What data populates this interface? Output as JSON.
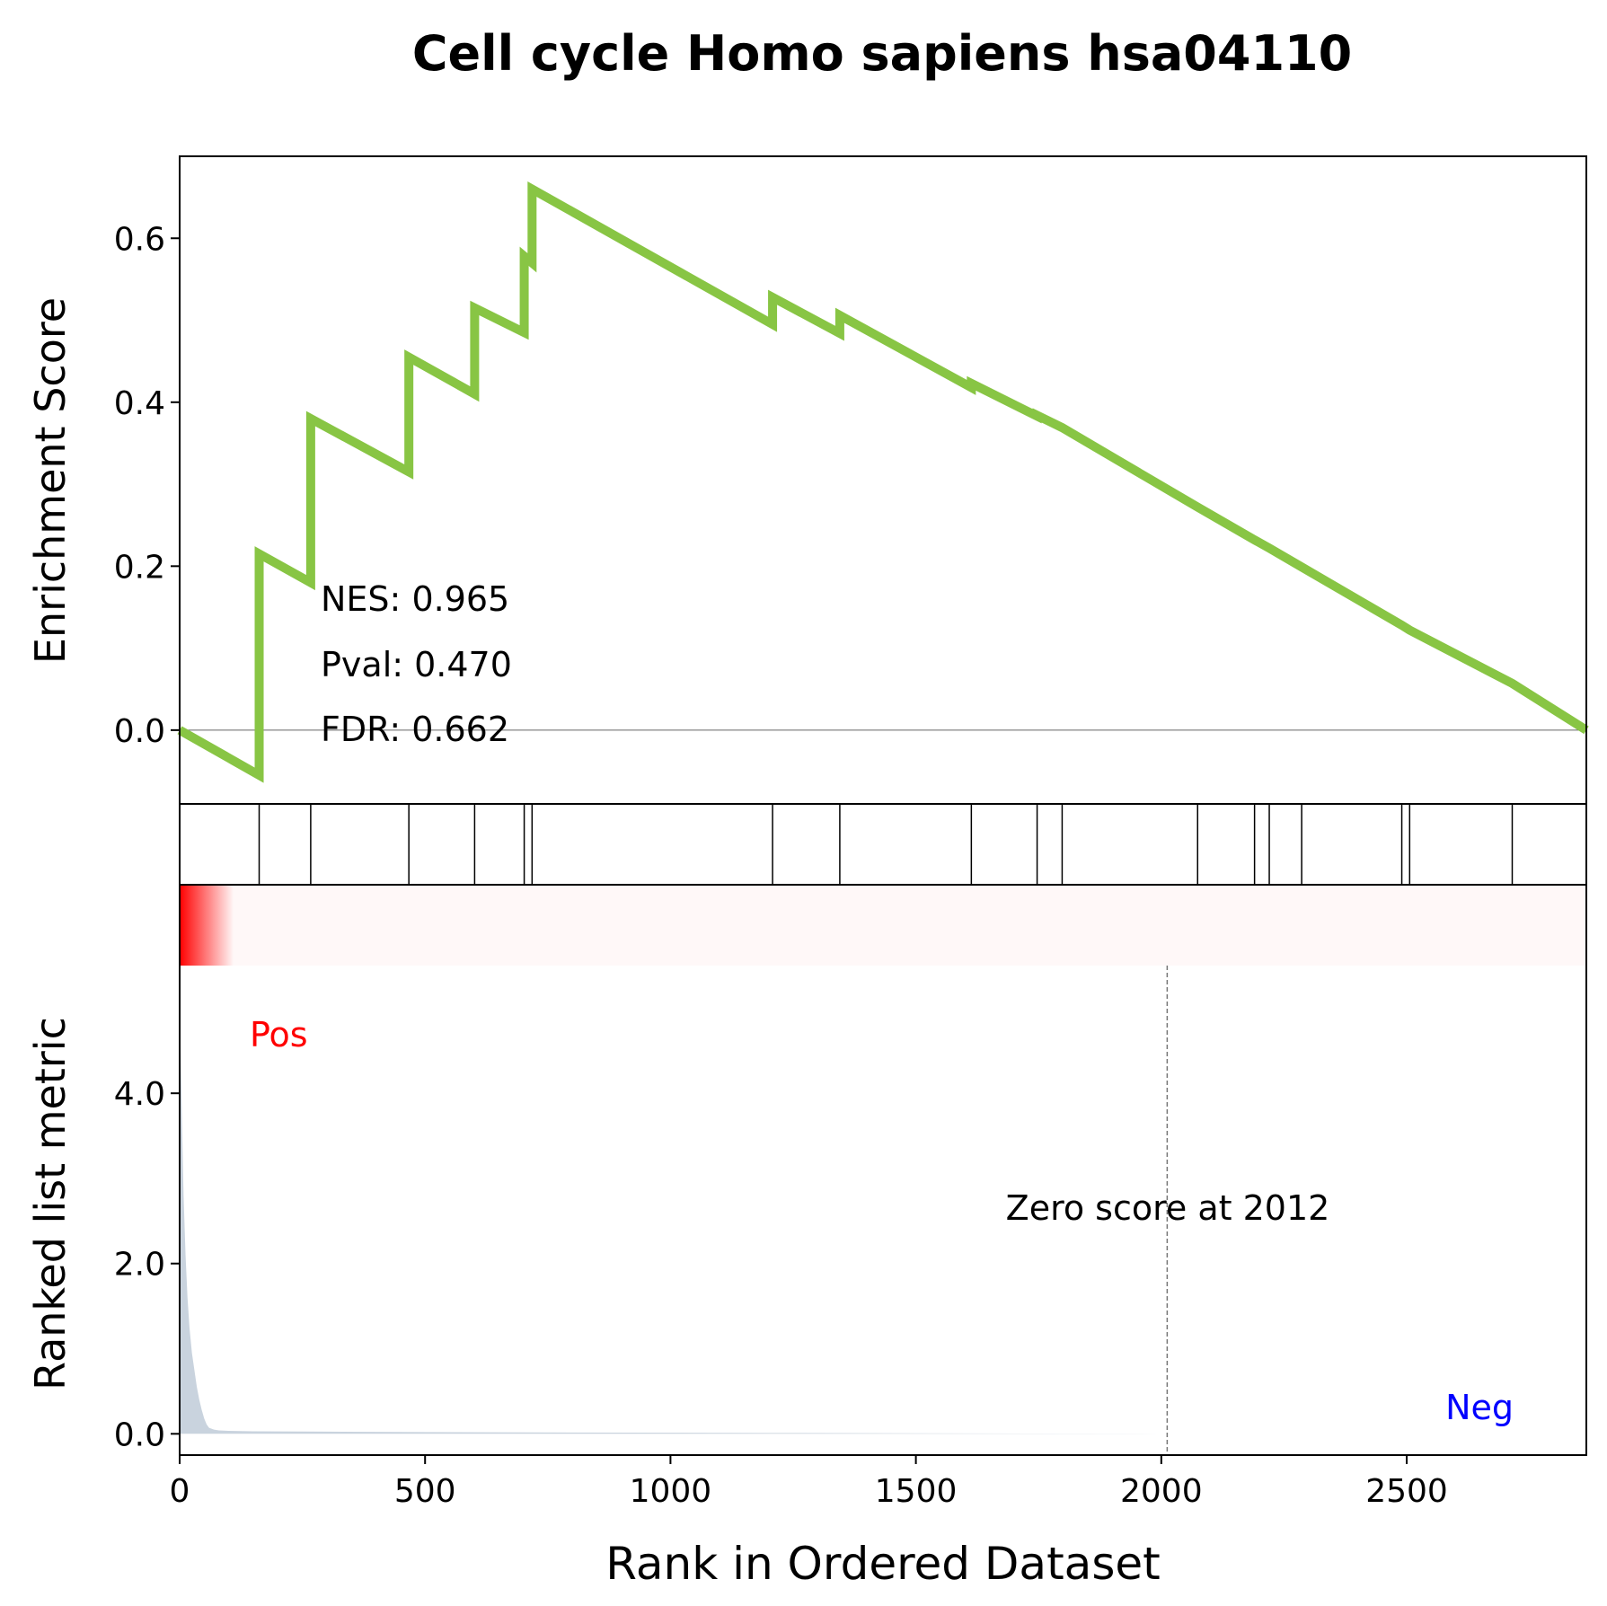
{
  "figure": {
    "title": "Cell cycle Homo sapiens hsa04110"
  },
  "chart_data": [
    {
      "type": "line",
      "panel": "enrichment",
      "ylabel": "Enrichment Score",
      "xlim": [
        0,
        2866
      ],
      "ylim": [
        -0.09,
        0.7
      ],
      "yticks": [
        0.0,
        0.2,
        0.4,
        0.6
      ],
      "ytick_labels": [
        "0.0",
        "0.2",
        "0.4",
        "0.6"
      ],
      "zero_line": true,
      "line_color": "#88C544",
      "series": [
        {
          "x": [
            0,
            162,
            162,
            267,
            267,
            467,
            467,
            601,
            601,
            702,
            702,
            718,
            718,
            1208,
            1208,
            1345,
            1345,
            1613,
            1613,
            1747,
            1747,
            1798,
            1798,
            2074,
            2190,
            2220,
            2286,
            2490,
            2506,
            2715,
            2866
          ],
          "y": [
            0.0,
            -0.055,
            0.215,
            0.18,
            0.38,
            0.315,
            0.455,
            0.41,
            0.515,
            0.485,
            0.578,
            0.57,
            0.66,
            0.495,
            0.528,
            0.484,
            0.506,
            0.418,
            0.423,
            0.383,
            0.384,
            0.369,
            0.369,
            0.272,
            0.232,
            0.222,
            0.199,
            0.128,
            0.122,
            0.057,
            0.0
          ]
        }
      ],
      "annotations": [
        {
          "label": "NES",
          "text": "NES: 0.965"
        },
        {
          "label": "Pval",
          "text": "Pval: 0.470"
        },
        {
          "label": "FDR",
          "text": "FDR: 0.662"
        }
      ]
    },
    {
      "type": "scatter",
      "panel": "hits",
      "description": "gene set hit positions",
      "x": [
        162,
        267,
        467,
        601,
        702,
        718,
        1208,
        1345,
        1613,
        1747,
        1798,
        2074,
        2190,
        2220,
        2286,
        2490,
        2506,
        2715,
        2866
      ]
    },
    {
      "type": "heatmap",
      "panel": "rank-colorbar",
      "color_high": "#ff0000",
      "color_low": "#fff8f8",
      "gradient_end_rank": 110
    },
    {
      "type": "area",
      "panel": "ranked-metric",
      "xlabel": "Rank in Ordered Dataset",
      "ylabel": "Ranked list metric",
      "xlim": [
        0,
        2866
      ],
      "ylim": [
        -0.25,
        5.5
      ],
      "xticks": [
        0,
        500,
        1000,
        1500,
        2000,
        2500
      ],
      "xtick_labels": [
        "0",
        "500",
        "1000",
        "1500",
        "2000",
        "2500"
      ],
      "yticks": [
        0.0,
        2.0,
        4.0
      ],
      "ytick_labels": [
        "0.0",
        "2.0",
        "4.0"
      ],
      "fill_color": "#c9d3de",
      "series": [
        {
          "x": [
            0,
            2,
            5,
            8,
            12,
            16,
            20,
            25,
            30,
            35,
            40,
            45,
            50,
            55,
            60,
            70,
            80,
            100,
            150,
            200,
            300,
            500,
            800,
            1200,
            1600,
            2000,
            2012,
            2400,
            2866
          ],
          "y": [
            5.2,
            4.5,
            3.6,
            2.8,
            2.1,
            1.6,
            1.25,
            0.95,
            0.75,
            0.55,
            0.4,
            0.28,
            0.18,
            0.11,
            0.07,
            0.05,
            0.04,
            0.035,
            0.03,
            0.028,
            0.025,
            0.02,
            0.015,
            0.01,
            0.005,
            0.001,
            0.0,
            0.0,
            0.0
          ]
        }
      ],
      "zero_cross_rank": 2012,
      "annotations": [
        {
          "label": "Pos",
          "text": "Pos",
          "color": "#ff0000"
        },
        {
          "label": "Neg",
          "text": "Neg",
          "color": "#0000ff"
        },
        {
          "label": "zero",
          "text": "Zero score at 2012"
        }
      ]
    }
  ]
}
